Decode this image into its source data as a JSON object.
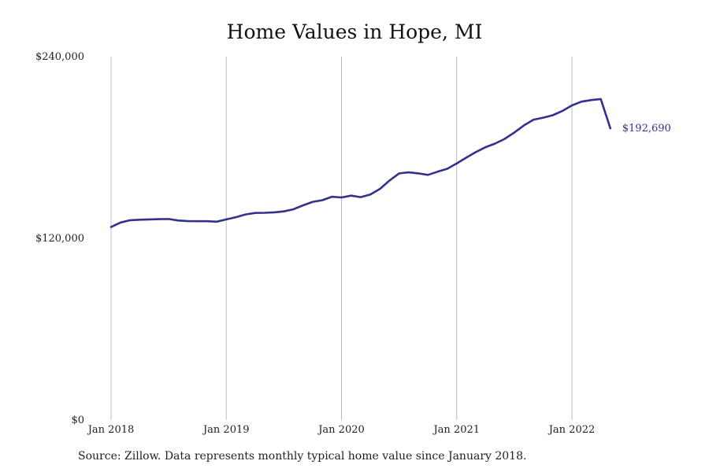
{
  "chart_data": {
    "type": "line",
    "title": "Home Values in Hope, MI",
    "source_note": "Source: Zillow. Data represents monthly typical home value since January 2018.",
    "x_ticks": [
      "Jan 2018",
      "Jan 2019",
      "Jan 2020",
      "Jan 2021",
      "Jan 2022"
    ],
    "y_ticks": [
      "$0",
      "$120,000",
      "$240,000"
    ],
    "ylim": [
      0,
      240000
    ],
    "xlim": [
      "2018-01",
      "2022-12"
    ],
    "grid": "vertical",
    "line_color": "#33318f",
    "end_label": "$192,690",
    "series": [
      {
        "x": [
          "2018-01",
          "2018-02",
          "2018-03",
          "2018-04",
          "2018-05",
          "2018-06",
          "2018-07",
          "2018-08",
          "2018-09",
          "2018-10",
          "2018-11",
          "2018-12",
          "2019-01",
          "2019-02",
          "2019-03",
          "2019-04",
          "2019-05",
          "2019-06",
          "2019-07",
          "2019-08",
          "2019-09",
          "2019-10",
          "2019-11",
          "2019-12",
          "2020-01",
          "2020-02",
          "2020-03",
          "2020-04",
          "2020-05",
          "2020-06",
          "2020-07",
          "2020-08",
          "2020-09",
          "2020-10",
          "2020-11",
          "2020-12",
          "2021-01",
          "2021-02",
          "2021-03",
          "2021-04",
          "2021-05",
          "2021-06",
          "2021-07",
          "2021-08",
          "2021-09",
          "2021-10",
          "2021-11",
          "2021-12",
          "2022-01",
          "2022-02",
          "2022-03",
          "2022-04",
          "2022-05"
        ],
        "values": [
          127500,
          130500,
          132000,
          132300,
          132500,
          132700,
          132800,
          131800,
          131400,
          131300,
          131300,
          131000,
          132500,
          134000,
          135800,
          136800,
          136900,
          137200,
          137800,
          139200,
          141800,
          144100,
          145200,
          147500,
          147000,
          148200,
          147200,
          149000,
          152700,
          158200,
          162900,
          163600,
          162900,
          161900,
          164000,
          165900,
          169500,
          173300,
          177000,
          180200,
          182600,
          185700,
          189900,
          194600,
          198400,
          199700,
          201300,
          204100,
          207800,
          210300,
          211300,
          212000,
          192690
        ]
      }
    ]
  }
}
